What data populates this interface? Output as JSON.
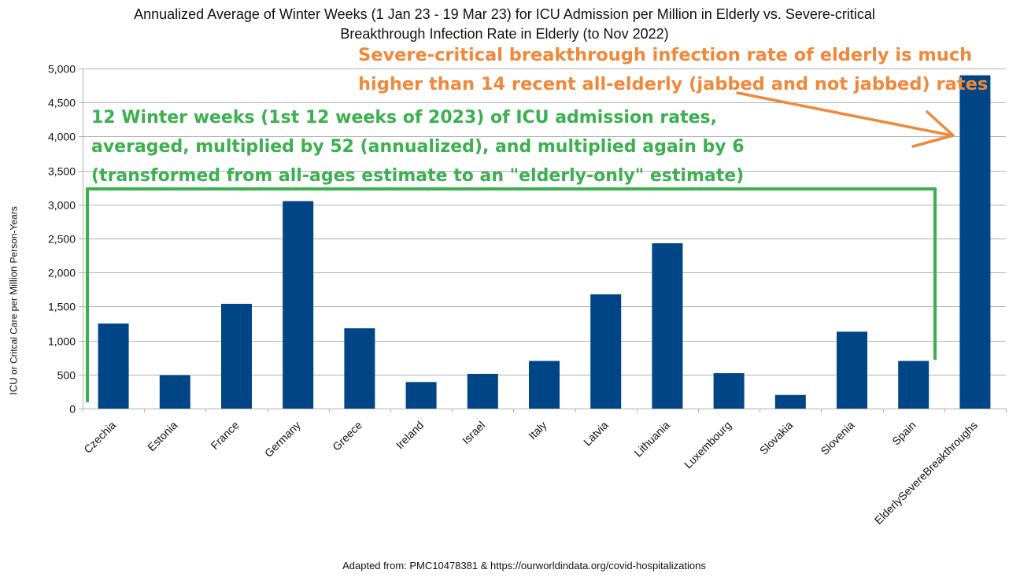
{
  "chart_data": {
    "type": "bar",
    "title_line1": "Annualized Average of Winter Weeks (1 Jan 23 - 19 Mar 23) for ICU Admission per Million in Elderly vs. Severe-critical",
    "title_line2": "Breakthrough Infection Rate in Elderly (to Nov 2022)",
    "ylabel_part1": "ICU",
    "ylabel_part2": " or Critcal Care per ",
    "ylabel_part3": "Million",
    "ylabel_part4": " Person-Years",
    "xlabel": "",
    "ylim": [
      0,
      5000
    ],
    "yticks": [
      "0",
      "500",
      "1,000",
      "1,500",
      "2,000",
      "2,500",
      "3,000",
      "3,500",
      "4,000",
      "4,500",
      "5,000"
    ],
    "categories": [
      "Czechia",
      "Estonia",
      "France",
      "Germany",
      "Greece",
      "Ireland",
      "Israel",
      "Italy",
      "Latvia",
      "Lithuania",
      "Luxembourg",
      "Slovakia",
      "Slovenia",
      "Spain",
      "ElderlySevereBreakthroughs"
    ],
    "values": [
      1250,
      490,
      1540,
      3050,
      1180,
      390,
      510,
      700,
      1680,
      2430,
      520,
      200,
      1130,
      700,
      4900
    ],
    "bar_color": "#004586",
    "grid": true,
    "legend": "none"
  },
  "annotations": {
    "orange_line1": "Severe-critical breakthrough infection rate of elderly is much",
    "orange_line2": "higher than 14 recent all-elderly (jabbed and not jabbed) rates",
    "orange_color": "#f0883a",
    "green_line1": "12 Winter weeks (1st 12 weeks of 2023) of ICU admission rates,",
    "green_line2": "averaged, multiplied by 52 (annualized), and multiplied again by 6",
    "green_line3": "(transformed from all-ages estimate to an \"elderly-only\" estimate)",
    "green_color": "#3bb04f"
  },
  "source": "Adapted from: PMC10478381 & https://ourworldindata.org/covid-hospitalizations"
}
